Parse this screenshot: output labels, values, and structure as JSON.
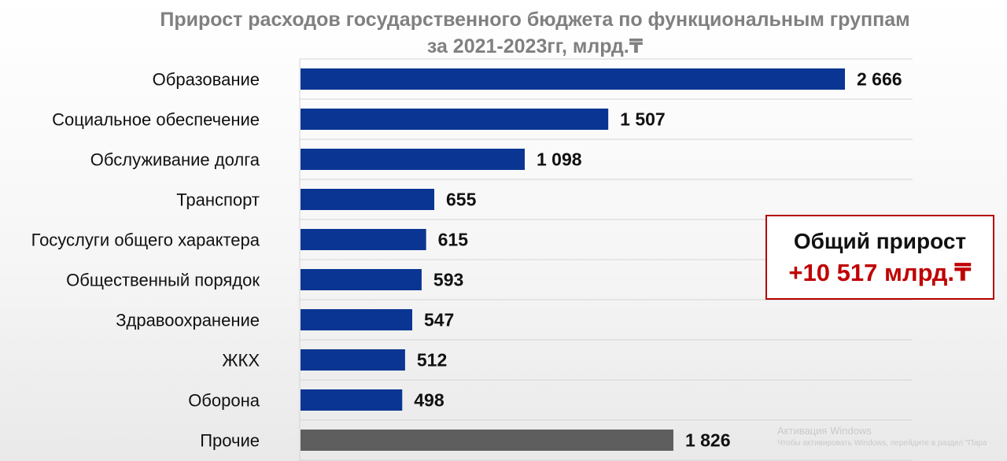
{
  "title": {
    "line1": "Прирост расходов государственного бюджета по функциональным группам",
    "line2": "за 2021-2023гг, млрд.₸"
  },
  "chart_data": {
    "type": "bar",
    "orientation": "horizontal",
    "categories": [
      "Образование",
      "Социальное обеспечение",
      "Обслуживание долга",
      "Транспорт",
      "Госуслуги общего характера",
      "Общественный порядок",
      "Здравоохранение",
      "ЖКХ",
      "Оборона",
      "Прочие"
    ],
    "values": [
      2666,
      1507,
      1098,
      655,
      615,
      593,
      547,
      512,
      498,
      1826
    ],
    "value_labels": [
      "2 666",
      "1 507",
      "1 098",
      "655",
      "615",
      "593",
      "547",
      "512",
      "498",
      "1 826"
    ],
    "bar_colors": [
      "#0a3593",
      "#0a3593",
      "#0a3593",
      "#0a3593",
      "#0a3593",
      "#0a3593",
      "#0a3593",
      "#0a3593",
      "#0a3593",
      "#5e5e5e"
    ],
    "xlim": [
      0,
      3000
    ],
    "grid": true
  },
  "total": {
    "label": "Общий прирост",
    "value": "+10 517 млрд.₸",
    "value_color": "#c00000"
  },
  "watermark": {
    "line1": "Активация Windows",
    "line2": "Чтобы активировать Windows, перейдите в раздел \"Пара"
  }
}
